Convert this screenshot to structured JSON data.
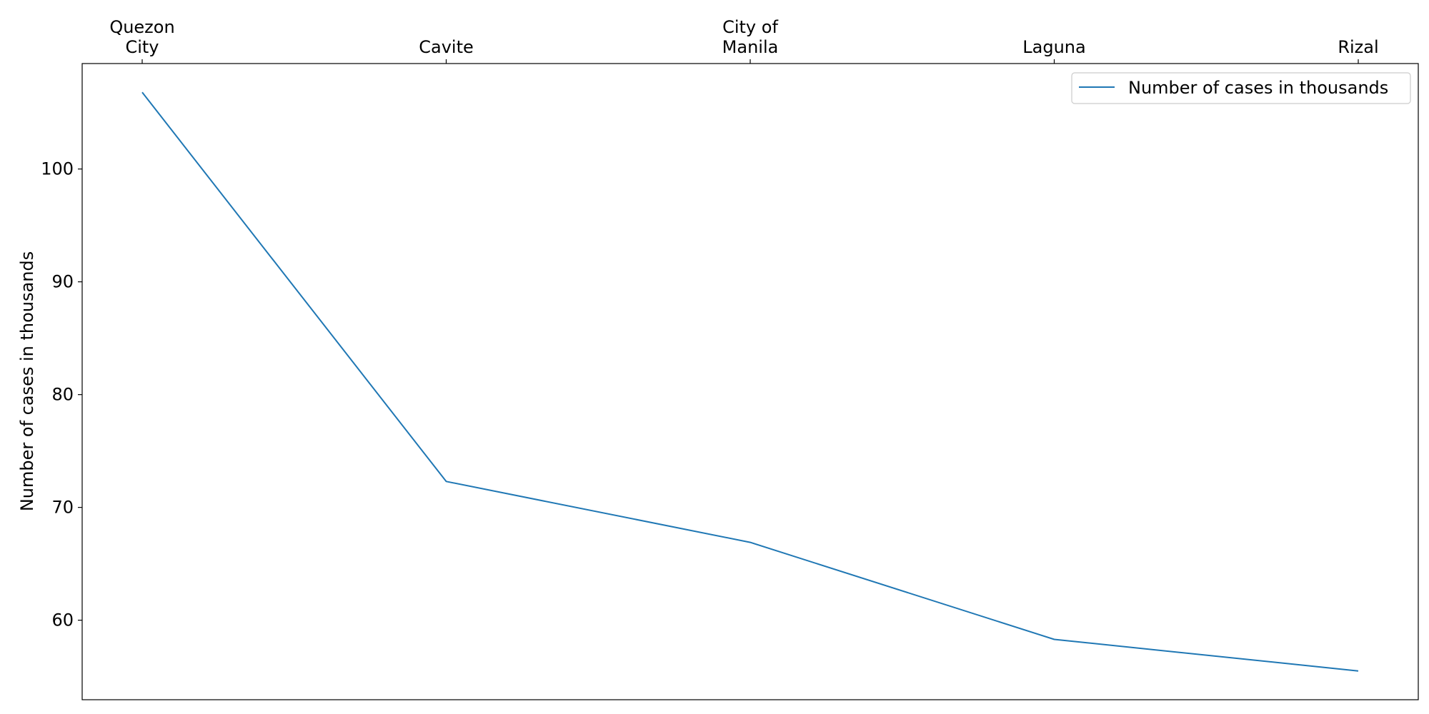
{
  "chart_data": {
    "type": "line",
    "title": "",
    "xlabel": "",
    "ylabel": "Number of cases in thousands",
    "x_axis_position": "top",
    "categories": [
      [
        "Quezon",
        "City"
      ],
      [
        "Cavite"
      ],
      [
        "City of",
        "Manila"
      ],
      [
        "Laguna"
      ],
      [
        "Rizal"
      ]
    ],
    "series": [
      {
        "name": "Number of cases in thousands",
        "color": "#1f77b4",
        "values": [
          106.8,
          72.3,
          66.9,
          58.3,
          55.5
        ]
      }
    ],
    "ylim": [
      52.95,
      109.35
    ],
    "yticks": [
      60,
      70,
      80,
      90,
      100
    ],
    "grid": false,
    "legend": "top-right"
  }
}
